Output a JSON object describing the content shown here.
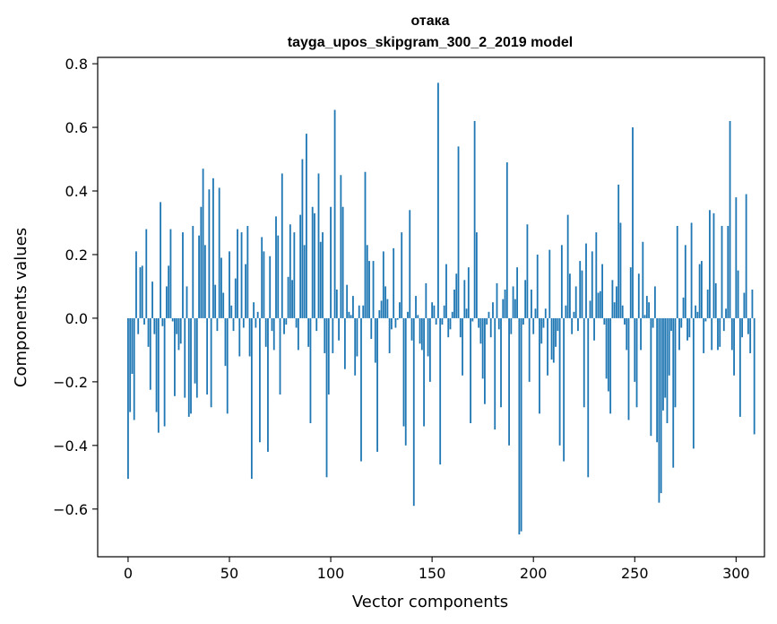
{
  "chart_data": {
    "type": "bar",
    "title": "отака",
    "subtitle": "tayga_upos_skipgram_300_2_2019 model",
    "xlabel": "Vector components",
    "ylabel": "Components values",
    "xlim": [
      -15,
      314
    ],
    "ylim": [
      -0.75,
      0.82
    ],
    "xticks": [
      0,
      50,
      100,
      150,
      200,
      250,
      300
    ],
    "xtick_labels": [
      "0",
      "50",
      "100",
      "150",
      "200",
      "250",
      "300"
    ],
    "yticks": [
      -0.6,
      -0.4,
      -0.2,
      0.0,
      0.2,
      0.4,
      0.6,
      0.8
    ],
    "ytick_labels": [
      "−0.6",
      "−0.4",
      "−0.2",
      "0.0",
      "0.2",
      "0.4",
      "0.6",
      "0.8"
    ],
    "bar_color": "#1f77b4",
    "grid": false,
    "legend": "none",
    "values": [
      -0.505,
      -0.295,
      -0.175,
      -0.32,
      0.21,
      -0.05,
      0.16,
      0.165,
      -0.02,
      0.28,
      -0.09,
      -0.225,
      0.115,
      -0.05,
      -0.295,
      -0.36,
      0.365,
      -0.025,
      -0.34,
      0.1,
      0.165,
      0.28,
      -0.01,
      -0.245,
      -0.05,
      -0.1,
      -0.08,
      0.27,
      -0.25,
      0.1,
      -0.31,
      -0.3,
      0.29,
      -0.205,
      -0.25,
      0.26,
      0.35,
      0.47,
      0.23,
      -0.24,
      0.405,
      -0.28,
      0.44,
      0.105,
      -0.04,
      0.41,
      0.19,
      0.08,
      -0.15,
      -0.3,
      0.21,
      0.04,
      -0.04,
      0.125,
      0.28,
      -0.12,
      0.27,
      -0.03,
      0.17,
      0.29,
      -0.12,
      -0.505,
      0.05,
      -0.03,
      0.02,
      -0.39,
      0.255,
      0.21,
      -0.09,
      -0.42,
      0.195,
      -0.04,
      -0.1,
      0.32,
      0.26,
      -0.24,
      0.455,
      -0.05,
      -0.02,
      0.13,
      0.295,
      0.12,
      0.27,
      -0.03,
      -0.1,
      0.325,
      0.5,
      0.23,
      0.58,
      -0.09,
      -0.33,
      0.35,
      0.33,
      -0.04,
      0.455,
      0.24,
      0.27,
      -0.11,
      -0.5,
      -0.24,
      0.35,
      -0.11,
      0.655,
      0.09,
      -0.07,
      0.45,
      0.35,
      -0.16,
      0.105,
      0.02,
      0.01,
      0.07,
      -0.18,
      -0.12,
      0.04,
      -0.45,
      0.04,
      0.46,
      0.23,
      0.18,
      -0.065,
      0.18,
      -0.14,
      -0.42,
      0.025,
      0.055,
      0.21,
      0.1,
      0.06,
      -0.11,
      -0.035,
      0.22,
      -0.03,
      -0.005,
      0.05,
      0.27,
      -0.34,
      -0.4,
      0.02,
      0.34,
      -0.07,
      -0.59,
      0.07,
      0.01,
      -0.08,
      -0.1,
      -0.34,
      0.11,
      -0.12,
      -0.2,
      0.05,
      0.04,
      -0.02,
      0.74,
      -0.46,
      -0.02,
      0.04,
      0.17,
      -0.06,
      -0.035,
      0.02,
      0.09,
      0.14,
      0.54,
      -0.06,
      -0.18,
      0.12,
      0.03,
      0.16,
      -0.33,
      -0.01,
      0.62,
      0.27,
      -0.03,
      -0.08,
      -0.19,
      -0.27,
      -0.02,
      0.02,
      -0.06,
      0.05,
      -0.35,
      0.11,
      -0.035,
      -0.28,
      0.06,
      0.09,
      0.49,
      -0.4,
      -0.05,
      0.1,
      0.06,
      0.16,
      -0.68,
      -0.67,
      -0.02,
      0.12,
      0.295,
      -0.2,
      0.09,
      -0.05,
      0.03,
      0.2,
      -0.3,
      -0.08,
      -0.03,
      0.03,
      -0.18,
      0.215,
      -0.13,
      -0.14,
      -0.09,
      -0.04,
      -0.4,
      0.23,
      -0.45,
      0.04,
      0.325,
      0.14,
      -0.05,
      0.02,
      0.1,
      -0.04,
      0.18,
      0.15,
      -0.28,
      0.235,
      -0.5,
      0.055,
      0.21,
      -0.07,
      0.27,
      0.08,
      0.085,
      0.17,
      -0.02,
      -0.19,
      -0.23,
      -0.3,
      0.12,
      0.05,
      0.1,
      0.42,
      0.3,
      0.04,
      -0.02,
      -0.1,
      -0.32,
      0.16,
      0.6,
      -0.2,
      -0.28,
      0.14,
      -0.1,
      0.24,
      0.01,
      0.07,
      0.05,
      -0.37,
      -0.03,
      0.1,
      -0.39,
      -0.58,
      -0.55,
      -0.29,
      -0.25,
      -0.33,
      -0.18,
      -0.04,
      -0.47,
      -0.28,
      0.29,
      -0.1,
      -0.03,
      0.065,
      0.23,
      -0.07,
      -0.06,
      0.3,
      -0.41,
      0.04,
      0.02,
      0.17,
      0.18,
      -0.11,
      -0.01,
      0.09,
      0.34,
      -0.1,
      0.33,
      0.11,
      -0.1,
      -0.09,
      0.29,
      -0.04,
      0.03,
      0.29,
      0.62,
      -0.1,
      -0.18,
      0.38,
      0.15,
      -0.31,
      -0.06,
      0.08,
      0.39,
      -0.05,
      -0.11,
      0.09,
      -0.365
    ]
  }
}
